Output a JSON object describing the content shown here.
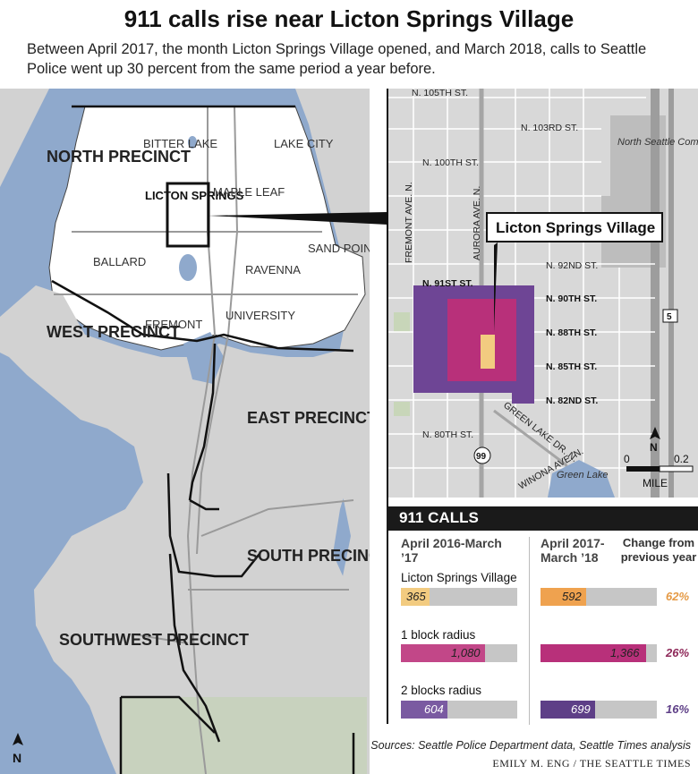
{
  "title": "911 calls rise near Licton Springs Village",
  "subtitle": "Between April 2017, the month Licton Springs Village opened, and March 2018, calls to Seattle Police went up 30 percent from the same period a year before.",
  "colors": {
    "water": "#8fa9cc",
    "land": "#d2d2d2",
    "north_precinct_fill": "#ffffff",
    "park": "#c8d6b9",
    "village": "#f2cb80",
    "one_block": "#b8307a",
    "two_blocks": "#6e4595",
    "inset_bg": "#d8d8d8"
  },
  "city_map": {
    "precincts": [
      "NORTH PRECINCT",
      "WEST PRECINCT",
      "EAST PRECINCT",
      "SOUTH PRECINCT",
      "SOUTHWEST PRECINCT"
    ],
    "neighborhoods": [
      "BITTER LAKE",
      "LAKE CITY",
      "LICTON SPRINGS",
      "MAPLE LEAF",
      "BALLARD",
      "RAVENNA",
      "SAND POINT",
      "FREMONT",
      "UNIVERSITY"
    ],
    "north_arrow": "N"
  },
  "inset_map": {
    "streets": [
      "N. 105TH ST.",
      "N. 103RD ST.",
      "N. 100TH ST.",
      "N. 92ND ST.",
      "N. 91ST ST.",
      "N. 90TH ST.",
      "N. 88TH ST.",
      "N. 85TH ST.",
      "N. 82ND ST.",
      "N. 80TH ST.",
      "FREMONT AVE. N.",
      "AURORA AVE. N.",
      "GREEN LAKE DR. N.",
      "WINONA AVE. N."
    ],
    "places": [
      "North Seattle Community College",
      "Green Lake"
    ],
    "highways": [
      "5",
      "99"
    ],
    "callout": "Licton Springs Village",
    "north_arrow": "N",
    "scale_start": "0",
    "scale_end": "0.2",
    "scale_unit": "MILE"
  },
  "calls_table": {
    "heading": "911 CALLS",
    "col1": "April 2016-March ’17",
    "col2": "April 2017-March ’18",
    "col3": "Change from previous year",
    "rows": [
      {
        "label": "Licton Springs Village",
        "before": 365,
        "after": 592,
        "change": "62%"
      },
      {
        "label": "1 block radius",
        "before": 1080,
        "after": 1366,
        "change": "26%"
      },
      {
        "label": "2 blocks radius",
        "before": 604,
        "after": 699,
        "change": "16%"
      }
    ],
    "before_text": [
      "365",
      "1,080",
      "604"
    ],
    "after_text": [
      "592",
      "1,366",
      "699"
    ],
    "max_value": 1500
  },
  "source": "Sources: Seattle Police Department data, Seattle Times analysis",
  "credit": "EMILY M. ENG / THE SEATTLE TIMES"
}
